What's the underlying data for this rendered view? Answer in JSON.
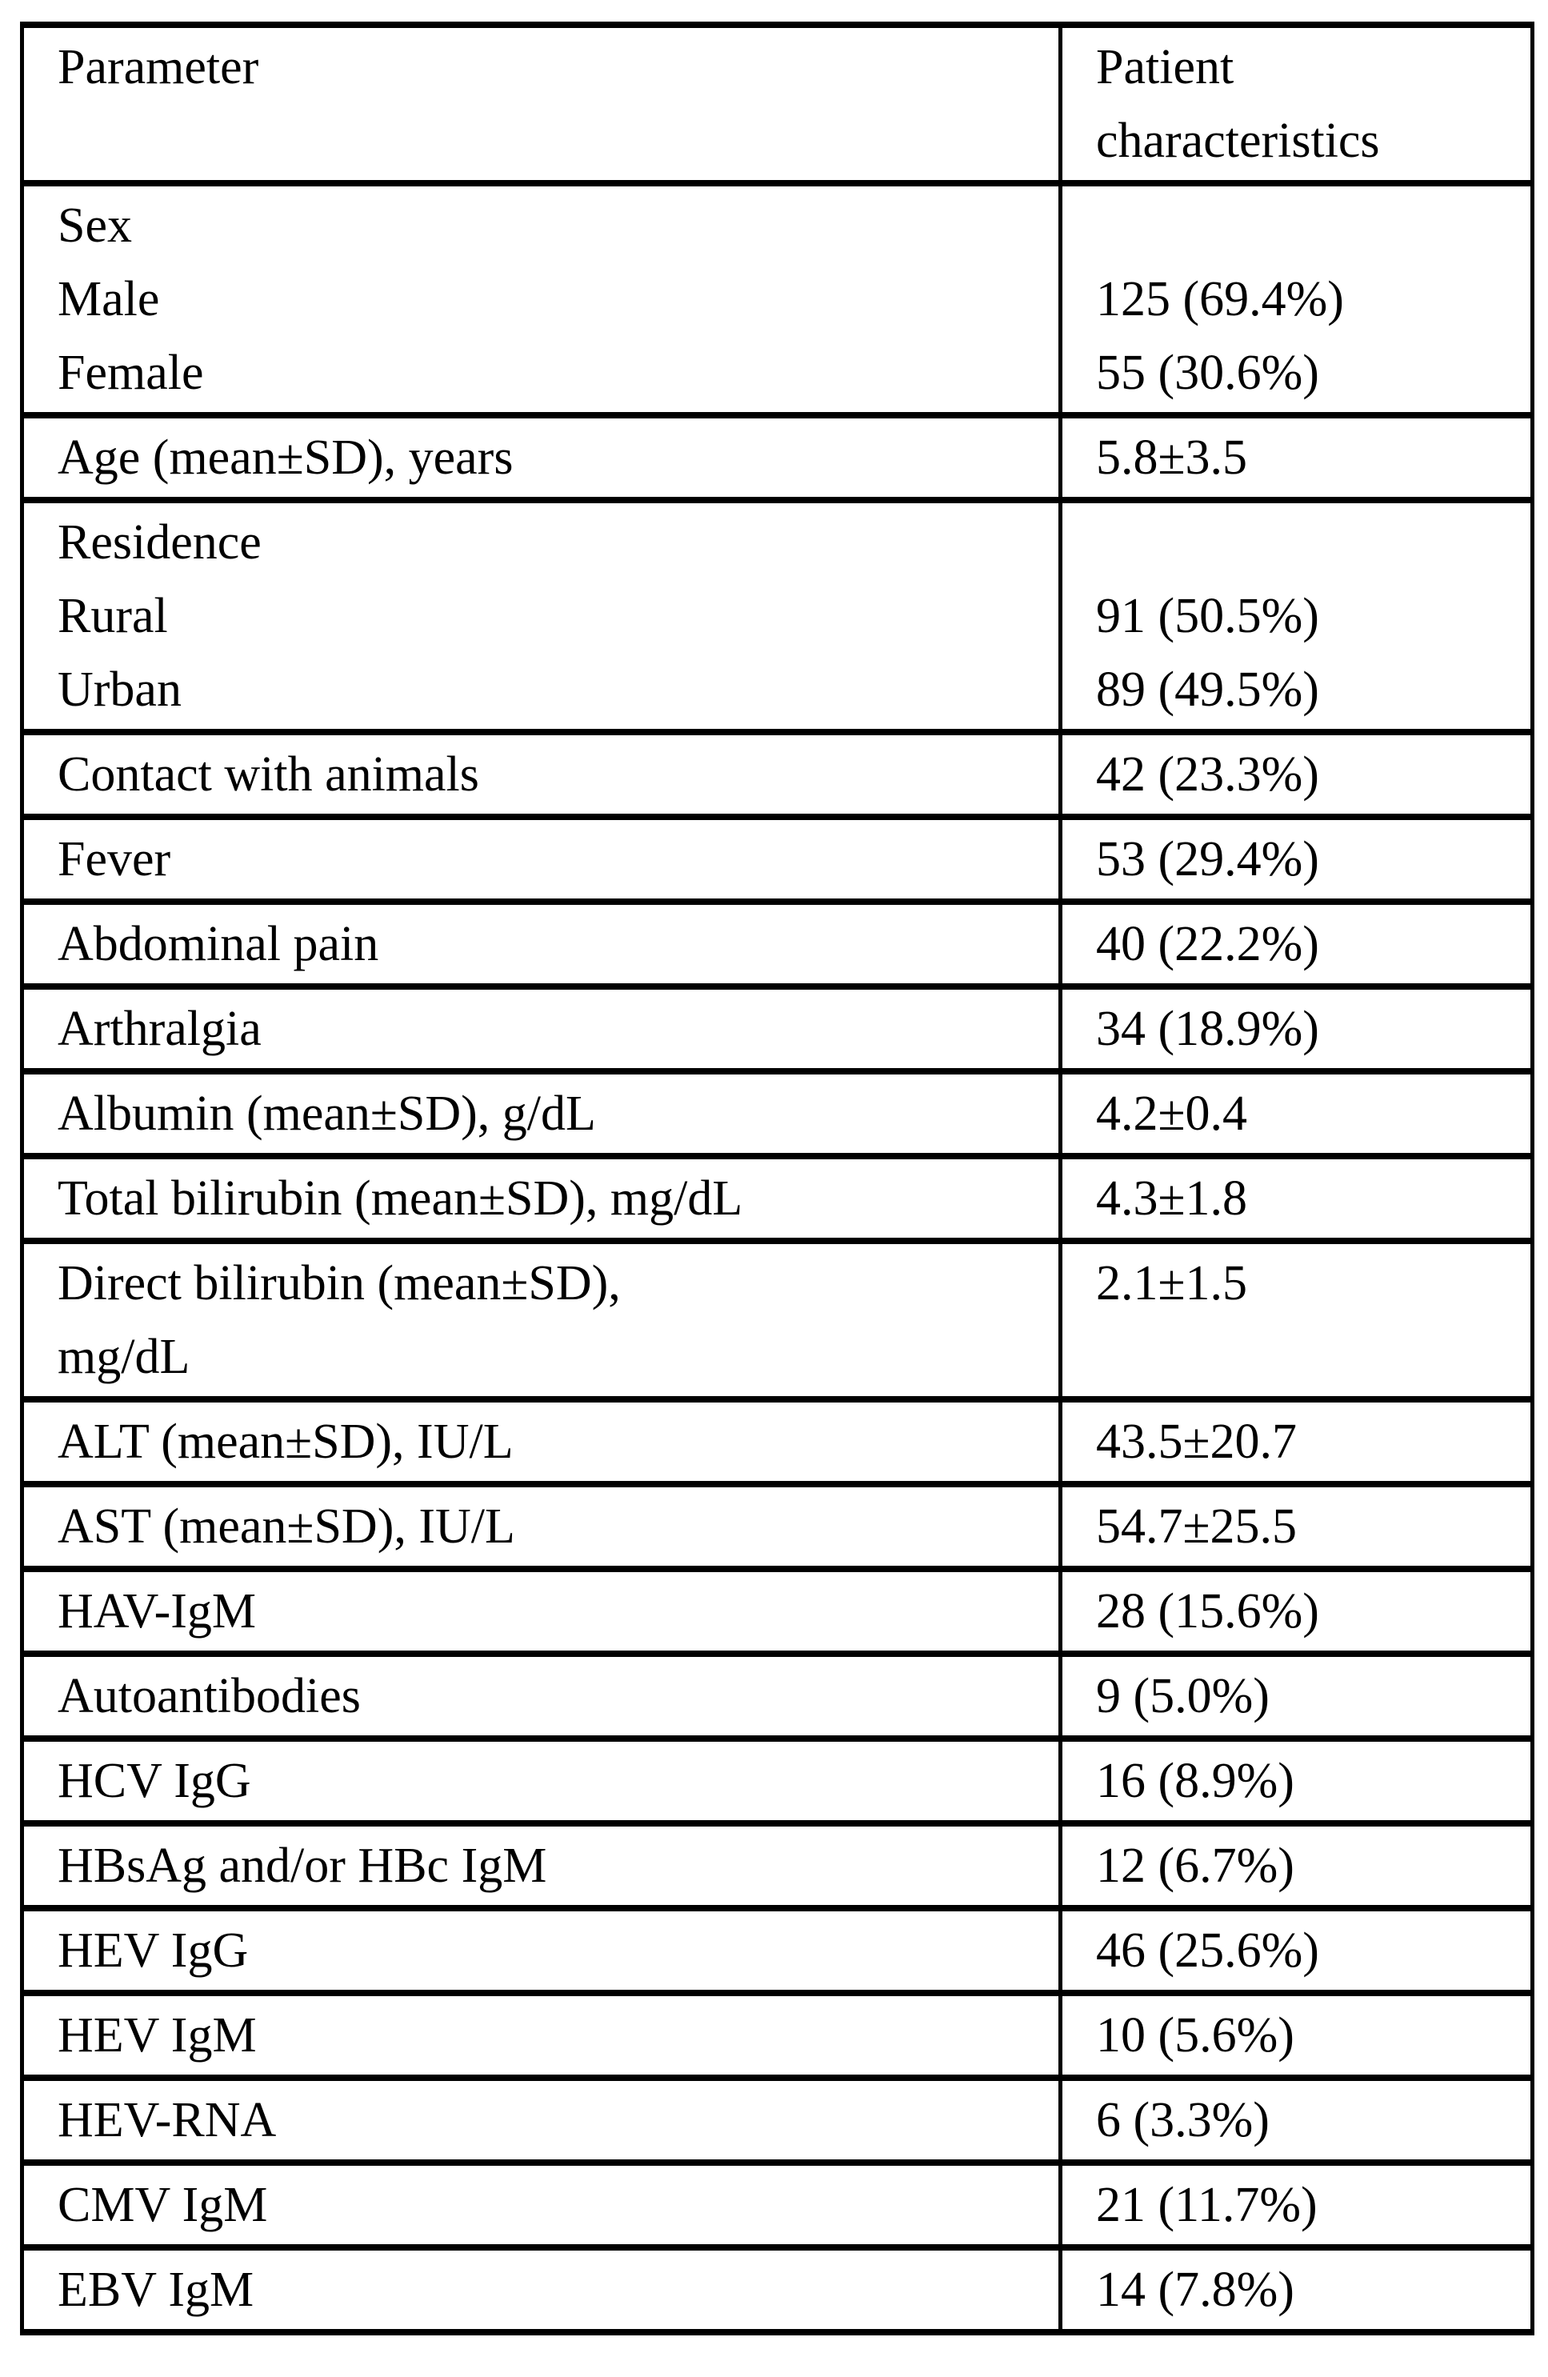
{
  "table": {
    "columns": [
      "Parameter",
      "Patient\ncharacteristics"
    ],
    "rows": [
      {
        "parameter": "Sex\nMale\nFemale",
        "value": "\n125 (69.4%)\n55 (30.6%)"
      },
      {
        "parameter": "Age (mean±SD), years",
        "value": "5.8±3.5"
      },
      {
        "parameter": "Residence\nRural\nUrban",
        "value": "\n91 (50.5%)\n89 (49.5%)"
      },
      {
        "parameter": "Contact with animals",
        "value": "42 (23.3%)"
      },
      {
        "parameter": "Fever",
        "value": "53 (29.4%)"
      },
      {
        "parameter": "Abdominal pain",
        "value": "40 (22.2%)"
      },
      {
        "parameter": "Arthralgia",
        "value": "34 (18.9%)"
      },
      {
        "parameter": "Albumin (mean±SD), g/dL",
        "value": "4.2±0.4"
      },
      {
        "parameter": "Total bilirubin (mean±SD), mg/dL",
        "value": "4.3±1.8"
      },
      {
        "parameter": "Direct bilirubin (mean±SD),\nmg/dL",
        "value": "2.1±1.5"
      },
      {
        "parameter": "ALT (mean±SD), IU/L",
        "value": "43.5±20.7"
      },
      {
        "parameter": "AST (mean±SD), IU/L",
        "value": "54.7±25.5"
      },
      {
        "parameter": "HAV-IgM",
        "value": "28 (15.6%)"
      },
      {
        "parameter": "Autoantibodies",
        "value": "9 (5.0%)"
      },
      {
        "parameter": "HCV IgG",
        "value": "16 (8.9%)"
      },
      {
        "parameter": "HBsAg and/or HBc IgM",
        "value": "12 (6.7%)"
      },
      {
        "parameter": "HEV IgG",
        "value": "46 (25.6%)"
      },
      {
        "parameter": "HEV IgM",
        "value": "10 (5.6%)"
      },
      {
        "parameter": "HEV-RNA",
        "value": "6 (3.3%)"
      },
      {
        "parameter": "CMV IgM",
        "value": "21 (11.7%)"
      },
      {
        "parameter": "EBV IgM",
        "value": "14 (7.8%)"
      }
    ]
  },
  "colors": {
    "background": "#ffffff",
    "text": "#000000",
    "border": "#000000"
  }
}
